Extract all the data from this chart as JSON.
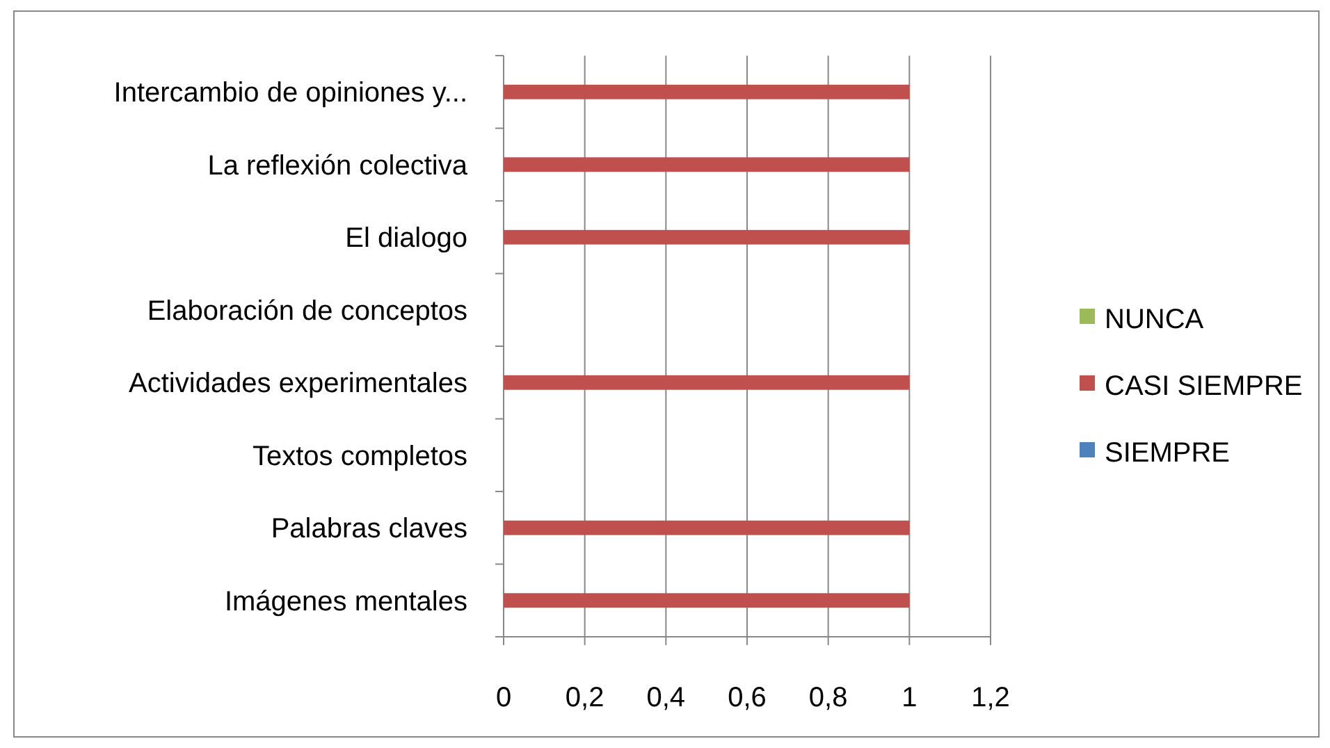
{
  "chart_data": {
    "type": "bar",
    "orientation": "horizontal",
    "categories": [
      "Intercambio de opiniones y...",
      "La reflexión  colectiva",
      "El dialogo",
      "Elaboración de conceptos",
      "Actividades experimentales",
      "Textos completos",
      "Palabras claves",
      "Imágenes mentales"
    ],
    "series": [
      {
        "name": "NUNCA",
        "color": "#9bbb59",
        "values": [
          null,
          null,
          null,
          null,
          null,
          null,
          null,
          null
        ]
      },
      {
        "name": "CASI SIEMPRE",
        "color": "#c0504d",
        "values": [
          1,
          1,
          1,
          null,
          1,
          null,
          1,
          1
        ]
      },
      {
        "name": "SIEMPRE",
        "color": "#4f81bd",
        "values": [
          null,
          null,
          null,
          null,
          null,
          null,
          null,
          null
        ]
      }
    ],
    "xlim": [
      0,
      1.2
    ],
    "xticks": [
      {
        "value": 0,
        "label": "0"
      },
      {
        "value": 0.2,
        "label": "0,2"
      },
      {
        "value": 0.4,
        "label": "0,4"
      },
      {
        "value": 0.6,
        "label": "0,6"
      },
      {
        "value": 0.8,
        "label": "0,8"
      },
      {
        "value": 1,
        "label": "1"
      },
      {
        "value": 1.2,
        "label": "1,2"
      }
    ],
    "grid": "x",
    "legend": "right"
  }
}
